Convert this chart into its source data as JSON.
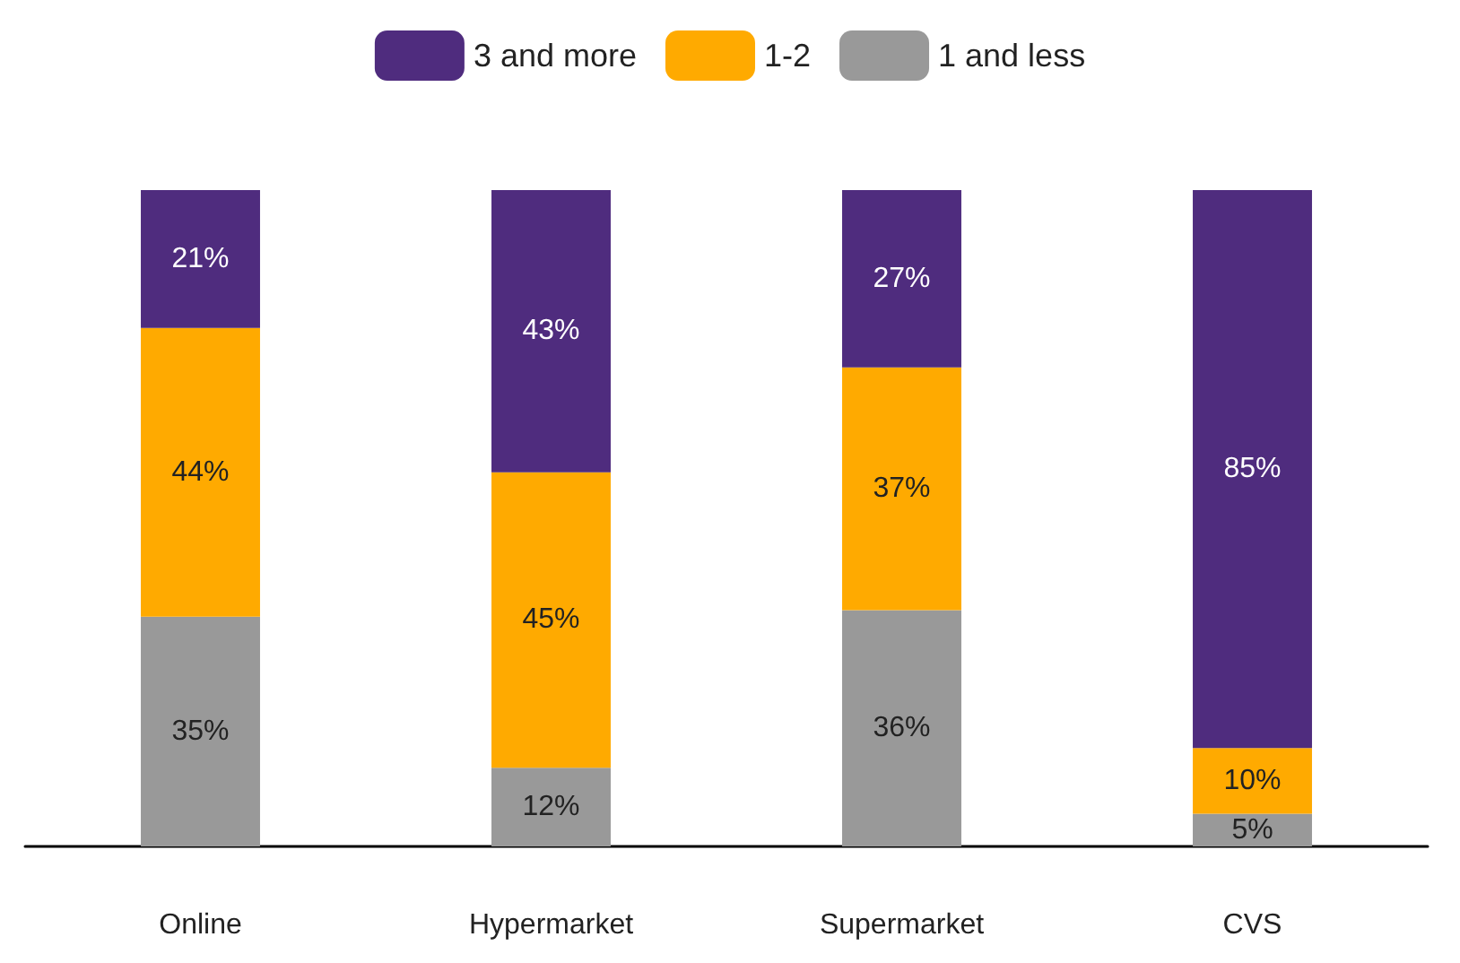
{
  "chart_data": {
    "type": "bar",
    "stacked": true,
    "categories": [
      "Online",
      "Hypermarket",
      "Supermarket",
      "CVS"
    ],
    "series": [
      {
        "name": "1 and less",
        "color": "#999999",
        "values": [
          35,
          12,
          36,
          5
        ],
        "value_labels": [
          "35%",
          "12%",
          "36%",
          "5%"
        ]
      },
      {
        "name": "1-2",
        "color": "#ffaa00",
        "values": [
          44,
          45,
          37,
          10
        ],
        "value_labels": [
          "44%",
          "45%",
          "37%",
          "10%"
        ]
      },
      {
        "name": "3 and more",
        "color": "#4f2c7e",
        "values": [
          21,
          43,
          27,
          85
        ],
        "value_labels": [
          "21%",
          "43%",
          "27%",
          "85%"
        ]
      }
    ],
    "legend": "top"
  }
}
